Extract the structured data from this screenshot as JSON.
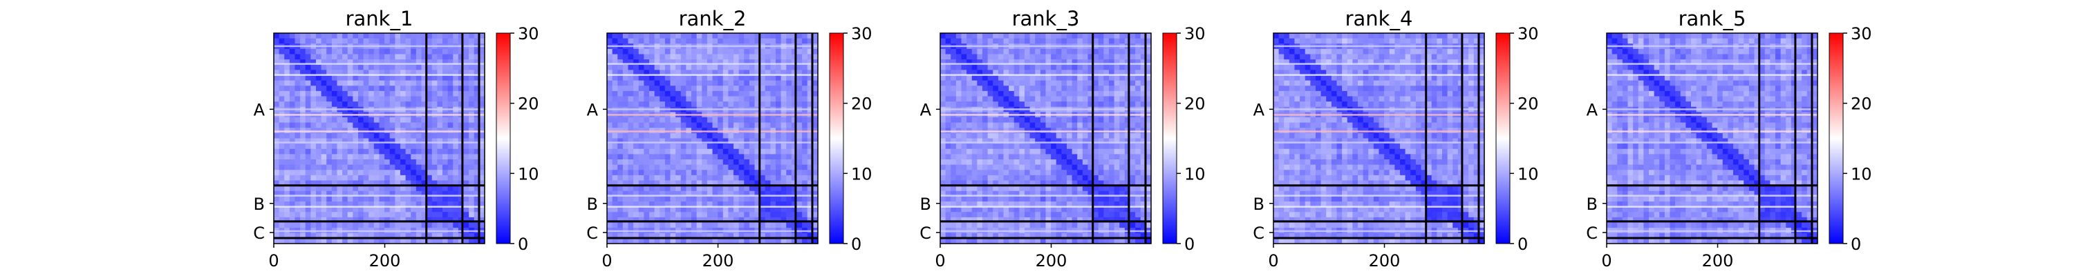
{
  "colorbar_gradient": [
    "#0000ff",
    "#ffffff",
    "#ff0000"
  ],
  "chart_data": [
    {
      "type": "heatmap",
      "title": "rank_1",
      "xlabel": "",
      "ylabel": "",
      "x_ticks": [
        0,
        200
      ],
      "y_tick_labels": [
        "A",
        "B",
        "C"
      ],
      "chain_boundaries": [
        275,
        340,
        370
      ],
      "n_residues": 380,
      "colorbar": {
        "min": 0,
        "max": 30,
        "ticks": [
          0,
          10,
          20,
          30
        ]
      },
      "grid": false
    },
    {
      "type": "heatmap",
      "title": "rank_2",
      "xlabel": "",
      "ylabel": "",
      "x_ticks": [
        0,
        200
      ],
      "y_tick_labels": [
        "A",
        "B",
        "C"
      ],
      "chain_boundaries": [
        275,
        340,
        370
      ],
      "n_residues": 380,
      "colorbar": {
        "min": 0,
        "max": 30,
        "ticks": [
          0,
          10,
          20,
          30
        ]
      },
      "grid": false
    },
    {
      "type": "heatmap",
      "title": "rank_3",
      "xlabel": "",
      "ylabel": "",
      "x_ticks": [
        0,
        200
      ],
      "y_tick_labels": [
        "A",
        "B",
        "C"
      ],
      "chain_boundaries": [
        275,
        340,
        370
      ],
      "n_residues": 380,
      "colorbar": {
        "min": 0,
        "max": 30,
        "ticks": [
          0,
          10,
          20,
          30
        ]
      },
      "grid": false
    },
    {
      "type": "heatmap",
      "title": "rank_4",
      "xlabel": "",
      "ylabel": "",
      "x_ticks": [
        0,
        200
      ],
      "y_tick_labels": [
        "A",
        "B",
        "C"
      ],
      "chain_boundaries": [
        275,
        340,
        370
      ],
      "n_residues": 380,
      "colorbar": {
        "min": 0,
        "max": 30,
        "ticks": [
          0,
          10,
          20,
          30
        ]
      },
      "grid": false
    },
    {
      "type": "heatmap",
      "title": "rank_5",
      "xlabel": "",
      "ylabel": "",
      "x_ticks": [
        0,
        200
      ],
      "y_tick_labels": [
        "A",
        "B",
        "C"
      ],
      "chain_boundaries": [
        275,
        340,
        370
      ],
      "n_residues": 380,
      "colorbar": {
        "min": 0,
        "max": 30,
        "ticks": [
          0,
          10,
          20,
          30
        ]
      },
      "grid": false
    }
  ]
}
